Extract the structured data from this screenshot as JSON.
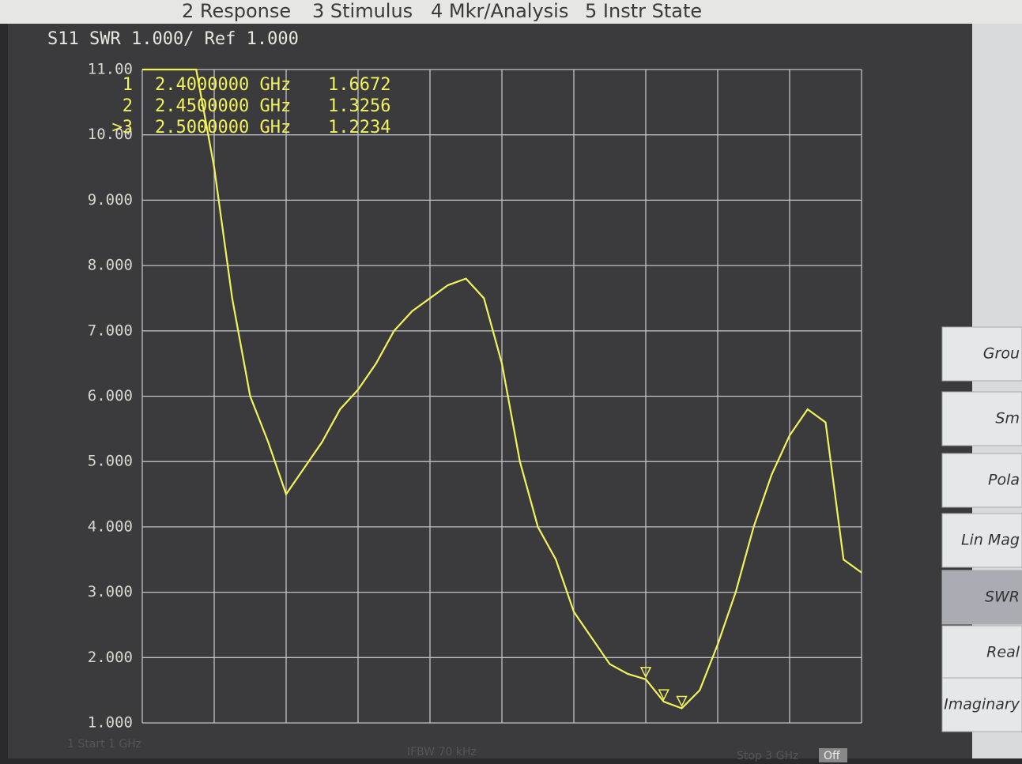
{
  "menu": [
    "2 Response",
    "3 Stimulus",
    "4 Mkr/Analysis",
    "5 Instr State"
  ],
  "chart_data": {
    "type": "line",
    "title": "S11 SWR 1.000/ Ref 1.000",
    "x": [
      1.0,
      1.05,
      1.1,
      1.15,
      1.2,
      1.25,
      1.3,
      1.35,
      1.4,
      1.45,
      1.5,
      1.55,
      1.6,
      1.65,
      1.7,
      1.75,
      1.8,
      1.85,
      1.9,
      1.95,
      2.0,
      2.05,
      2.1,
      2.15,
      2.2,
      2.25,
      2.3,
      2.35,
      2.4,
      2.45,
      2.5,
      2.55,
      2.6,
      2.65,
      2.7,
      2.75,
      2.8,
      2.85,
      2.9,
      2.95,
      3.0
    ],
    "series": [
      {
        "name": "S11",
        "color": "#f2f25a",
        "values": [
          11,
          11,
          11,
          11,
          9.5,
          7.5,
          6.0,
          5.3,
          4.5,
          4.9,
          5.3,
          5.8,
          6.1,
          6.5,
          7.0,
          7.3,
          7.5,
          7.7,
          7.8,
          7.5,
          6.5,
          5.0,
          4.0,
          3.5,
          2.7,
          2.3,
          1.9,
          1.75,
          1.6672,
          1.3256,
          1.2234,
          1.5,
          2.2,
          3.0,
          4.0,
          4.8,
          5.4,
          5.8,
          5.6,
          3.5,
          3.3
        ]
      }
    ],
    "xlim": [
      1,
      3
    ],
    "xticks": [
      1.0,
      1.2,
      1.4,
      1.6,
      1.8,
      2.0,
      2.2,
      2.4,
      2.6,
      2.8,
      3.0
    ],
    "ylim": [
      1,
      11
    ],
    "yticks": [
      {
        "value": 1,
        "label": "1.000"
      },
      {
        "value": 2,
        "label": "2.000"
      },
      {
        "value": 3,
        "label": "3.000"
      },
      {
        "value": 4,
        "label": "4.000"
      },
      {
        "value": 5,
        "label": "5.000"
      },
      {
        "value": 6,
        "label": "6.000"
      },
      {
        "value": 7,
        "label": "7.000"
      },
      {
        "value": 8,
        "label": "8.000"
      },
      {
        "value": 9,
        "label": "9.000"
      },
      {
        "value": 10,
        "label": "10.00"
      },
      {
        "value": 11,
        "label": "11.00"
      }
    ],
    "grid": true,
    "markers": [
      {
        "id": "1",
        "x": 2.4,
        "x_label": "2.4000000 GHz",
        "value": 1.6672
      },
      {
        "id": "2",
        "x": 2.45,
        "x_label": "2.4500000 GHz",
        "value": 1.3256
      },
      {
        "id": ">3",
        "x": 2.5,
        "x_label": "2.5000000 GHz",
        "value": 1.2234
      }
    ]
  },
  "softkeys": [
    "Grou",
    "Sm",
    "Pola",
    "Lin Mag",
    "SWR",
    "Real",
    "Imaginary"
  ],
  "footer": {
    "start": "1 Start 1 GHz",
    "ifbw": "IFBW 70 kHz",
    "stop": "Stop 3 GHz",
    "status": "Off"
  }
}
